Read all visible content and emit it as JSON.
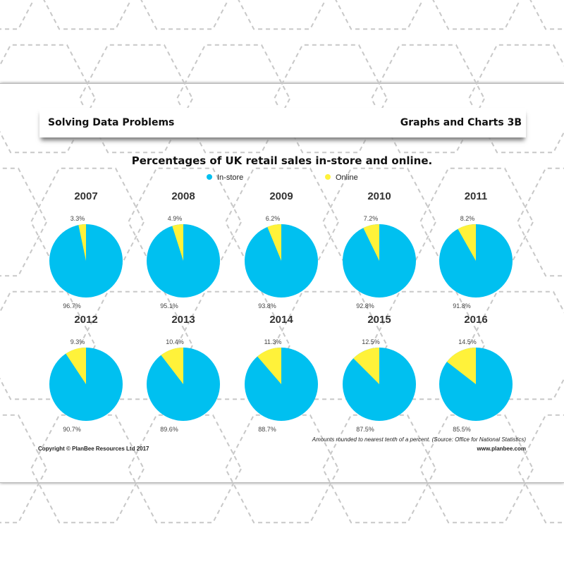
{
  "header": {
    "left": "Solving Data Problems",
    "right": "Graphs and Charts 3B"
  },
  "footer": {
    "copyright": "Copyright © PlanBee Resources Ltd 2017",
    "note": "Amounts rounded to nearest tenth of a percent. (Source: Office for National Statistics)",
    "website": "www.planbee.com"
  },
  "chart_data": {
    "type": "pie",
    "title": "Percentages of UK retail sales in-store and online.",
    "legend": [
      {
        "name": "In-store",
        "color": "#00c0f0"
      },
      {
        "name": "Online",
        "color": "#fff23a"
      }
    ],
    "legend_position": "top",
    "pies": [
      {
        "year": "2007",
        "in_store": 96.7,
        "online": 3.3
      },
      {
        "year": "2008",
        "in_store": 95.1,
        "online": 4.9
      },
      {
        "year": "2009",
        "in_store": 93.8,
        "online": 6.2
      },
      {
        "year": "2010",
        "in_store": 92.8,
        "online": 7.2
      },
      {
        "year": "2011",
        "in_store": 91.8,
        "online": 8.2
      },
      {
        "year": "2012",
        "in_store": 90.7,
        "online": 9.3
      },
      {
        "year": "2013",
        "in_store": 89.6,
        "online": 10.4
      },
      {
        "year": "2014",
        "in_store": 88.7,
        "online": 11.3
      },
      {
        "year": "2015",
        "in_store": 87.5,
        "online": 12.5
      },
      {
        "year": "2016",
        "in_store": 85.5,
        "online": 14.5
      }
    ]
  }
}
